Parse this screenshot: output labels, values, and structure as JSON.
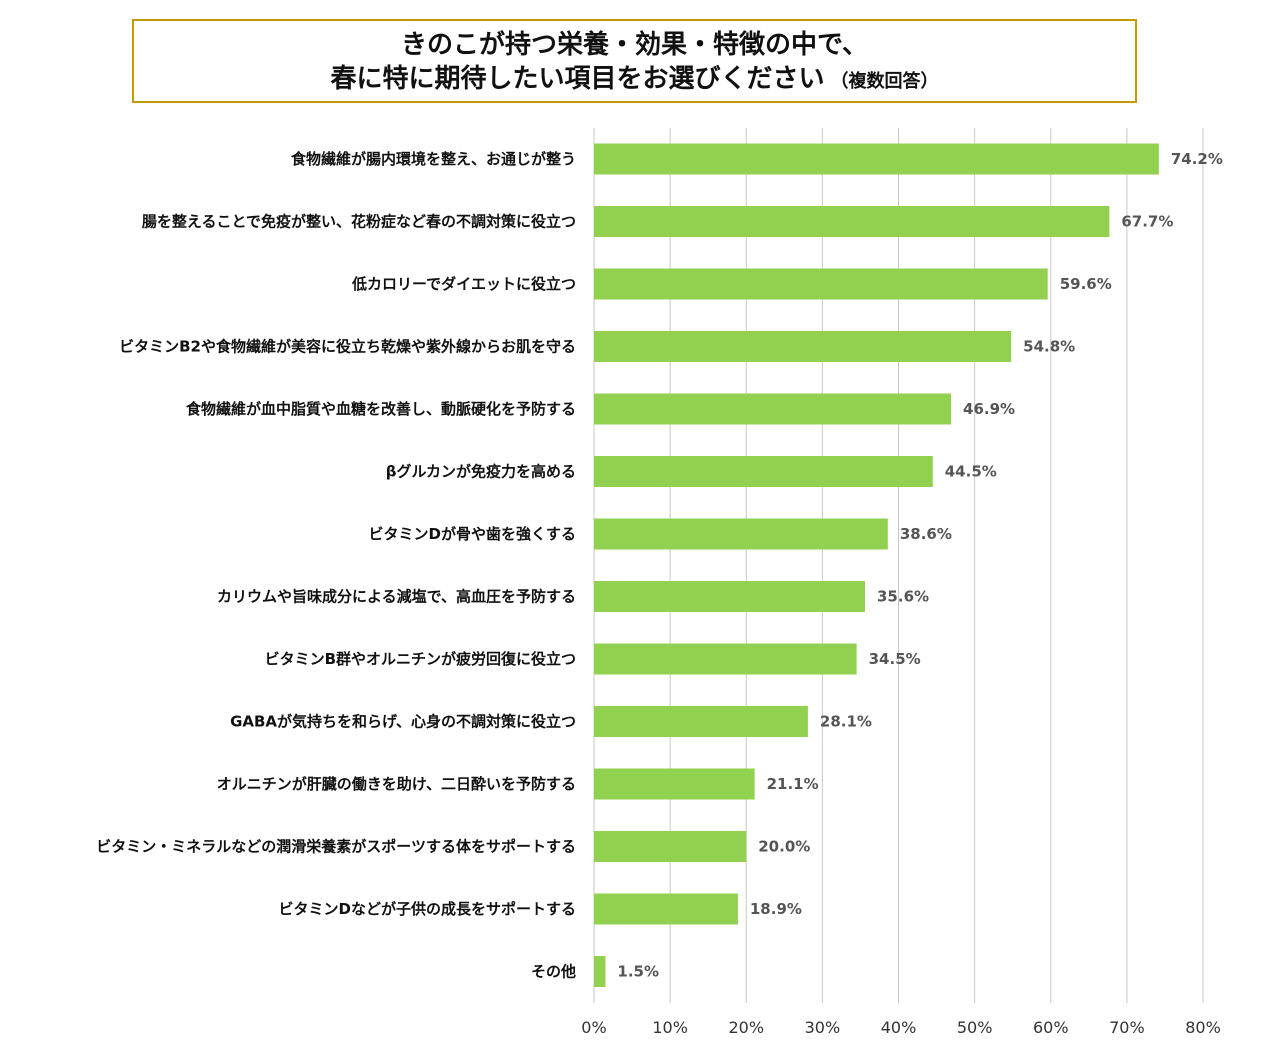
{
  "title": {
    "line1": "きのこが持つ栄養・効果・特徴の中で、",
    "line2": "春に特に期待したい項目をお選びください",
    "note": "（複数回答）"
  },
  "colors": {
    "bar": "#92d050",
    "title_border": "#c49a00",
    "grid": "#c8c8c8"
  },
  "chart_data": {
    "type": "bar",
    "orientation": "horizontal",
    "title": "きのこが持つ栄養・効果・特徴の中で、春に特に期待したい項目をお選びください（複数回答）",
    "categories": [
      "食物繊維が腸内環境を整え、お通じが整う",
      "腸を整えることで免疫が整い、花粉症など春の不調対策に役立つ",
      "低カロリーでダイエットに役立つ",
      "ビタミンB2や食物繊維が美容に役立ち乾燥や紫外線からお肌を守る",
      "食物繊維が血中脂質や血糖を改善し、動脈硬化を予防する",
      "βグルカンが免疫力を高める",
      "ビタミンDが骨や歯を強くする",
      "カリウムや旨味成分による減塩で、高血圧を予防する",
      "ビタミンB群やオルニチンが疲労回復に役立つ",
      "GABAが気持ちを和らげ、心身の不調対策に役立つ",
      "オルニチンが肝臓の働きを助け、二日酔いを予防する",
      "ビタミン・ミネラルなどの潤滑栄養素がスポーツする体をサポートする",
      "ビタミンDなどが子供の成長をサポートする",
      "その他"
    ],
    "values": [
      74.2,
      67.7,
      59.6,
      54.8,
      46.9,
      44.5,
      38.6,
      35.6,
      34.5,
      28.1,
      21.1,
      20.0,
      18.9,
      1.5
    ],
    "value_labels": [
      "74.2%",
      "67.7%",
      "59.6%",
      "54.8%",
      "46.9%",
      "44.5%",
      "38.6%",
      "35.6%",
      "34.5%",
      "28.1%",
      "21.1%",
      "20.0%",
      "18.9%",
      "1.5%"
    ],
    "xlim": [
      0,
      80
    ],
    "xticks": [
      0,
      10,
      20,
      30,
      40,
      50,
      60,
      70,
      80
    ],
    "xtick_labels": [
      "0%",
      "10%",
      "20%",
      "30%",
      "40%",
      "50%",
      "60%",
      "70%",
      "80%"
    ],
    "grid": true,
    "legend": "none"
  }
}
